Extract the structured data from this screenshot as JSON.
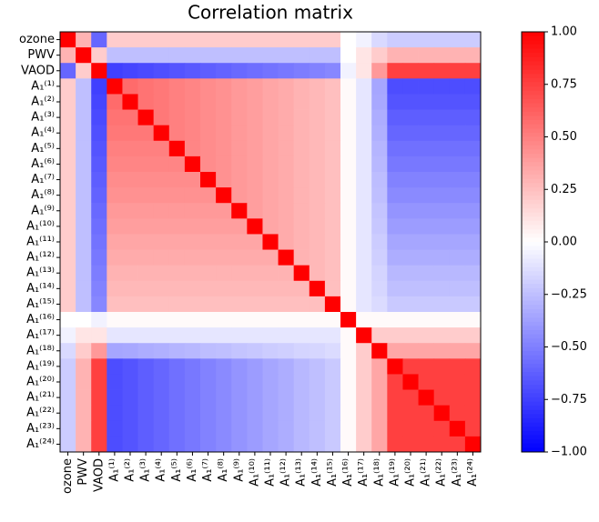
{
  "chart_data": {
    "type": "heatmap",
    "title": "Correlation matrix",
    "categories": [
      "ozone",
      "PWV",
      "VAOD",
      "A₁⁽¹⁾",
      "A₁⁽²⁾",
      "A₁⁽³⁾",
      "A₁⁽⁴⁾",
      "A₁⁽⁵⁾",
      "A₁⁽⁶⁾",
      "A₁⁽⁷⁾",
      "A₁⁽⁸⁾",
      "A₁⁽⁹⁾",
      "A₁⁽¹⁰⁾",
      "A₁⁽¹¹⁾",
      "A₁⁽¹²⁾",
      "A₁⁽¹³⁾",
      "A₁⁽¹⁴⁾",
      "A₁⁽¹⁵⁾",
      "A₁⁽¹⁶⁾",
      "A₁⁽¹⁷⁾",
      "A₁⁽¹⁸⁾",
      "A₁⁽¹⁹⁾",
      "A₁⁽²⁰⁾",
      "A₁⁽²¹⁾",
      "A₁⁽²²⁾",
      "A₁⁽²³⁾",
      "A₁⁽²⁴⁾"
    ],
    "values": [
      [
        1,
        0.3,
        -0.6,
        0.2,
        0.2,
        0.2,
        0.2,
        0.2,
        0.2,
        0.2,
        0.2,
        0.2,
        0.2,
        0.2,
        0.2,
        0.2,
        0.2,
        0.2,
        0,
        -0.05,
        -0.15,
        -0.2,
        -0.2,
        -0.2,
        -0.2,
        -0.2,
        -0.2
      ],
      [
        0.3,
        1,
        0.2,
        -0.25,
        -0.25,
        -0.25,
        -0.25,
        -0.25,
        -0.25,
        -0.25,
        -0.25,
        -0.25,
        -0.25,
        -0.25,
        -0.25,
        -0.25,
        -0.25,
        -0.25,
        0,
        0.1,
        0.2,
        0.3,
        0.3,
        0.3,
        0.3,
        0.3,
        0.3
      ],
      [
        -0.6,
        0.2,
        1,
        -0.75,
        -0.73,
        -0.71,
        -0.69,
        -0.67,
        -0.65,
        -0.63,
        -0.61,
        -0.59,
        -0.57,
        -0.55,
        -0.53,
        -0.51,
        -0.49,
        -0.47,
        -0.05,
        0.1,
        0.4,
        0.75,
        0.75,
        0.75,
        0.75,
        0.75,
        0.75
      ],
      [
        0.2,
        -0.25,
        -0.75,
        1,
        0.58,
        0.55,
        0.53,
        0.5,
        0.48,
        0.45,
        0.43,
        0.4,
        0.38,
        0.35,
        0.33,
        0.3,
        0.28,
        0.25,
        0.02,
        -0.1,
        -0.35,
        -0.7,
        -0.7,
        -0.7,
        -0.7,
        -0.7,
        -0.7
      ],
      [
        0.2,
        -0.25,
        -0.73,
        0.58,
        1,
        0.55,
        0.53,
        0.5,
        0.48,
        0.45,
        0.43,
        0.4,
        0.38,
        0.35,
        0.33,
        0.3,
        0.28,
        0.25,
        0.02,
        -0.1,
        -0.34,
        -0.67,
        -0.67,
        -0.67,
        -0.67,
        -0.67,
        -0.67
      ],
      [
        0.2,
        -0.25,
        -0.71,
        0.55,
        0.55,
        1,
        0.53,
        0.5,
        0.48,
        0.45,
        0.43,
        0.4,
        0.38,
        0.35,
        0.33,
        0.3,
        0.28,
        0.25,
        0.02,
        -0.1,
        -0.32,
        -0.63,
        -0.63,
        -0.63,
        -0.63,
        -0.63,
        -0.63
      ],
      [
        0.2,
        -0.25,
        -0.69,
        0.53,
        0.53,
        0.53,
        1,
        0.5,
        0.48,
        0.45,
        0.43,
        0.4,
        0.38,
        0.35,
        0.33,
        0.3,
        0.28,
        0.25,
        0.02,
        -0.1,
        -0.31,
        -0.6,
        -0.6,
        -0.6,
        -0.6,
        -0.6,
        -0.6
      ],
      [
        0.2,
        -0.25,
        -0.67,
        0.5,
        0.5,
        0.5,
        0.5,
        1,
        0.48,
        0.45,
        0.43,
        0.4,
        0.38,
        0.35,
        0.33,
        0.3,
        0.28,
        0.25,
        0.02,
        -0.1,
        -0.29,
        -0.56,
        -0.56,
        -0.56,
        -0.56,
        -0.56,
        -0.56
      ],
      [
        0.2,
        -0.25,
        -0.65,
        0.48,
        0.48,
        0.48,
        0.48,
        0.48,
        1,
        0.45,
        0.43,
        0.4,
        0.38,
        0.35,
        0.33,
        0.3,
        0.28,
        0.25,
        0.02,
        -0.1,
        -0.28,
        -0.53,
        -0.53,
        -0.53,
        -0.53,
        -0.53,
        -0.53
      ],
      [
        0.2,
        -0.25,
        -0.63,
        0.45,
        0.45,
        0.45,
        0.45,
        0.45,
        0.45,
        1,
        0.43,
        0.4,
        0.38,
        0.35,
        0.33,
        0.3,
        0.28,
        0.25,
        0.02,
        -0.1,
        -0.26,
        -0.49,
        -0.49,
        -0.49,
        -0.49,
        -0.49,
        -0.49
      ],
      [
        0.2,
        -0.25,
        -0.61,
        0.43,
        0.43,
        0.43,
        0.43,
        0.43,
        0.43,
        0.43,
        1,
        0.4,
        0.38,
        0.35,
        0.33,
        0.3,
        0.28,
        0.25,
        0.02,
        -0.1,
        -0.25,
        -0.46,
        -0.46,
        -0.46,
        -0.46,
        -0.46,
        -0.46
      ],
      [
        0.2,
        -0.25,
        -0.59,
        0.4,
        0.4,
        0.4,
        0.4,
        0.4,
        0.4,
        0.4,
        0.4,
        1,
        0.38,
        0.35,
        0.33,
        0.3,
        0.28,
        0.25,
        0.02,
        -0.1,
        -0.23,
        -0.42,
        -0.42,
        -0.42,
        -0.42,
        -0.42,
        -0.42
      ],
      [
        0.2,
        -0.25,
        -0.57,
        0.38,
        0.38,
        0.38,
        0.38,
        0.38,
        0.38,
        0.38,
        0.38,
        0.38,
        1,
        0.35,
        0.33,
        0.3,
        0.28,
        0.25,
        0.02,
        -0.1,
        -0.22,
        -0.39,
        -0.39,
        -0.39,
        -0.39,
        -0.39,
        -0.39
      ],
      [
        0.2,
        -0.25,
        -0.55,
        0.35,
        0.35,
        0.35,
        0.35,
        0.35,
        0.35,
        0.35,
        0.35,
        0.35,
        0.35,
        1,
        0.33,
        0.3,
        0.28,
        0.25,
        0.02,
        -0.1,
        -0.2,
        -0.35,
        -0.35,
        -0.35,
        -0.35,
        -0.35,
        -0.35
      ],
      [
        0.2,
        -0.25,
        -0.53,
        0.33,
        0.33,
        0.33,
        0.33,
        0.33,
        0.33,
        0.33,
        0.33,
        0.33,
        0.33,
        0.33,
        1,
        0.3,
        0.28,
        0.25,
        0.02,
        -0.1,
        -0.19,
        -0.32,
        -0.32,
        -0.32,
        -0.32,
        -0.32,
        -0.32
      ],
      [
        0.2,
        -0.25,
        -0.51,
        0.3,
        0.3,
        0.3,
        0.3,
        0.3,
        0.3,
        0.3,
        0.3,
        0.3,
        0.3,
        0.3,
        0.3,
        1,
        0.28,
        0.25,
        0.02,
        -0.1,
        -0.17,
        -0.28,
        -0.28,
        -0.28,
        -0.28,
        -0.28,
        -0.28
      ],
      [
        0.2,
        -0.25,
        -0.49,
        0.28,
        0.28,
        0.28,
        0.28,
        0.28,
        0.28,
        0.28,
        0.28,
        0.28,
        0.28,
        0.28,
        0.28,
        0.28,
        1,
        0.25,
        0.02,
        -0.1,
        -0.16,
        -0.25,
        -0.25,
        -0.25,
        -0.25,
        -0.25,
        -0.25
      ],
      [
        0.2,
        -0.25,
        -0.47,
        0.25,
        0.25,
        0.25,
        0.25,
        0.25,
        0.25,
        0.25,
        0.25,
        0.25,
        0.25,
        0.25,
        0.25,
        0.25,
        0.25,
        1,
        0.02,
        -0.1,
        -0.14,
        -0.21,
        -0.21,
        -0.21,
        -0.21,
        -0.21,
        -0.21
      ],
      [
        0,
        0,
        -0.05,
        0.02,
        0.02,
        0.02,
        0.02,
        0.02,
        0.02,
        0.02,
        0.02,
        0.02,
        0.02,
        0.02,
        0.02,
        0.02,
        0.02,
        0.02,
        1,
        0.02,
        0.02,
        0.02,
        0.02,
        0.02,
        0.02,
        0.02,
        0.02
      ],
      [
        -0.05,
        0.1,
        0.1,
        -0.1,
        -0.1,
        -0.1,
        -0.1,
        -0.1,
        -0.1,
        -0.1,
        -0.1,
        -0.1,
        -0.1,
        -0.1,
        -0.1,
        -0.1,
        -0.1,
        -0.1,
        0.02,
        1,
        0.2,
        0.2,
        0.2,
        0.2,
        0.2,
        0.2,
        0.2
      ],
      [
        -0.15,
        0.2,
        0.4,
        -0.35,
        -0.34,
        -0.32,
        -0.31,
        -0.29,
        -0.28,
        -0.26,
        -0.25,
        -0.23,
        -0.22,
        -0.2,
        -0.19,
        -0.17,
        -0.16,
        -0.14,
        0.02,
        0.2,
        1,
        0.35,
        0.35,
        0.35,
        0.35,
        0.35,
        0.35
      ],
      [
        -0.2,
        0.3,
        0.75,
        -0.7,
        -0.67,
        -0.63,
        -0.6,
        -0.56,
        -0.53,
        -0.49,
        -0.46,
        -0.42,
        -0.39,
        -0.35,
        -0.32,
        -0.28,
        -0.25,
        -0.21,
        0.02,
        0.2,
        0.35,
        1,
        0.75,
        0.75,
        0.75,
        0.75,
        0.75
      ],
      [
        -0.2,
        0.3,
        0.75,
        -0.7,
        -0.67,
        -0.63,
        -0.6,
        -0.56,
        -0.53,
        -0.49,
        -0.46,
        -0.42,
        -0.39,
        -0.35,
        -0.32,
        -0.28,
        -0.25,
        -0.21,
        0.02,
        0.2,
        0.35,
        0.75,
        1,
        0.75,
        0.75,
        0.75,
        0.75
      ],
      [
        -0.2,
        0.3,
        0.75,
        -0.7,
        -0.67,
        -0.63,
        -0.6,
        -0.56,
        -0.53,
        -0.49,
        -0.46,
        -0.42,
        -0.39,
        -0.35,
        -0.32,
        -0.28,
        -0.25,
        -0.21,
        0.02,
        0.2,
        0.35,
        0.75,
        0.75,
        1,
        0.75,
        0.75,
        0.75
      ],
      [
        -0.2,
        0.3,
        0.75,
        -0.7,
        -0.67,
        -0.63,
        -0.6,
        -0.56,
        -0.53,
        -0.49,
        -0.46,
        -0.42,
        -0.39,
        -0.35,
        -0.32,
        -0.28,
        -0.25,
        -0.21,
        0.02,
        0.2,
        0.35,
        0.75,
        0.75,
        0.75,
        1,
        0.75,
        0.75
      ],
      [
        -0.2,
        0.3,
        0.75,
        -0.7,
        -0.67,
        -0.63,
        -0.6,
        -0.56,
        -0.53,
        -0.49,
        -0.46,
        -0.42,
        -0.39,
        -0.35,
        -0.32,
        -0.28,
        -0.25,
        -0.21,
        0.02,
        0.2,
        0.35,
        0.75,
        0.75,
        0.75,
        0.75,
        1,
        0.75
      ],
      [
        -0.2,
        0.3,
        0.75,
        -0.7,
        -0.67,
        -0.63,
        -0.6,
        -0.56,
        -0.53,
        -0.49,
        -0.46,
        -0.42,
        -0.39,
        -0.35,
        -0.32,
        -0.28,
        -0.25,
        -0.21,
        0.02,
        0.2,
        0.35,
        0.75,
        0.75,
        0.75,
        0.75,
        0.75,
        1
      ]
    ],
    "colormap": "bwr",
    "clim": [
      -1,
      1
    ],
    "cticks": [
      {
        "value": -1,
        "label": "−1.00"
      },
      {
        "value": -0.75,
        "label": "−0.75"
      },
      {
        "value": -0.5,
        "label": "−0.50"
      },
      {
        "value": -0.25,
        "label": "−0.25"
      },
      {
        "value": 0,
        "label": "0.00"
      },
      {
        "value": 0.25,
        "label": "0.25"
      },
      {
        "value": 0.5,
        "label": "0.50"
      },
      {
        "value": 0.75,
        "label": "0.75"
      },
      {
        "value": 1,
        "label": "1.00"
      }
    ]
  }
}
